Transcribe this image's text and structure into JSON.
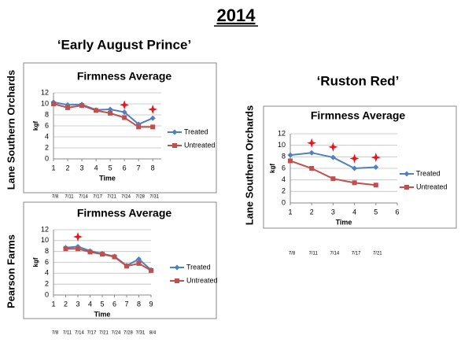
{
  "title": "2014",
  "varieties": [
    "‘Early August Prince’",
    "‘Ruston Red’"
  ],
  "chart_data": [
    {
      "type": "line",
      "title": "Firmness Average",
      "xlabel": "Time",
      "ylabel": "kgf",
      "site": "Lane Southern Orchards",
      "x": [
        1,
        2,
        3,
        4,
        5,
        6,
        7,
        8
      ],
      "series": [
        {
          "name": "Treated",
          "color": "#4f81bd",
          "marker": "diamond",
          "values": [
            10.3,
            9.8,
            9.9,
            8.9,
            9.0,
            8.5,
            6.3,
            7.4
          ]
        },
        {
          "name": "Untreated",
          "color": "#c0504d",
          "marker": "square",
          "values": [
            10.0,
            9.3,
            9.7,
            8.8,
            8.3,
            7.5,
            5.8,
            5.8
          ]
        }
      ],
      "xlim": [
        1,
        8.6
      ],
      "xticks": [
        1,
        2,
        3,
        4,
        5,
        6,
        7,
        8
      ],
      "ylim": [
        0,
        12
      ],
      "yticks": [
        0,
        2,
        4,
        6,
        8,
        10,
        12
      ],
      "grid": true,
      "legend": "right",
      "dates": [
        "7/8",
        "7/11",
        "7/14",
        "7/17",
        "7/21",
        "7/24",
        "7/28",
        "7/31"
      ],
      "stars": {
        "x": [
          6,
          8
        ],
        "y": [
          9.8,
          9.0
        ],
        "color": "#e8141c"
      }
    },
    {
      "type": "line",
      "title": "Firmness Average",
      "xlabel": "Time",
      "ylabel": "kgf",
      "site": "Pearson Farms",
      "x": [
        2,
        3,
        4,
        5,
        6,
        7,
        8,
        9
      ],
      "series": [
        {
          "name": "Treated",
          "color": "#4f81bd",
          "marker": "diamond",
          "values": [
            8.7,
            8.9,
            8.1,
            7.6,
            7.1,
            5.4,
            6.6,
            4.6
          ]
        },
        {
          "name": "Untreated",
          "color": "#c0504d",
          "marker": "square",
          "values": [
            8.5,
            8.5,
            7.9,
            7.5,
            7.0,
            5.3,
            5.8,
            4.5
          ]
        }
      ],
      "xlim": [
        1,
        9
      ],
      "xticks": [
        1,
        2,
        3,
        4,
        5,
        6,
        7,
        8,
        9
      ],
      "ylim": [
        0,
        12
      ],
      "yticks": [
        0,
        2,
        4,
        6,
        8,
        10,
        12
      ],
      "grid": true,
      "legend": "right",
      "dates": [
        "7/8",
        "7/11",
        "7/14",
        "7/17",
        "7/21",
        "7/24",
        "7/28",
        "7/31",
        "8/4"
      ],
      "stars": {
        "x": [
          3
        ],
        "y": [
          10.7
        ],
        "color": "#e8141c"
      }
    },
    {
      "type": "line",
      "title": "Firmness Average",
      "xlabel": "Time",
      "ylabel": "kgf",
      "site": "Lane Southern Orchards",
      "x": [
        1,
        2,
        3,
        4,
        5
      ],
      "series": [
        {
          "name": "Treated",
          "color": "#4f81bd",
          "marker": "diamond",
          "values": [
            8.3,
            8.7,
            7.9,
            6.0,
            6.2
          ]
        },
        {
          "name": "Untreated",
          "color": "#c0504d",
          "marker": "square",
          "values": [
            7.3,
            6.0,
            4.2,
            3.5,
            3.1
          ]
        }
      ],
      "xlim": [
        1,
        6
      ],
      "xticks": [
        1,
        2,
        3,
        4,
        5,
        6
      ],
      "ylim": [
        0,
        12
      ],
      "yticks": [
        0,
        2,
        4,
        6,
        8,
        10,
        12
      ],
      "grid": true,
      "legend": "right",
      "dates": [
        "7/8",
        "7/11",
        "7/14",
        "7/17",
        "7/21"
      ],
      "stars": {
        "x": [
          2,
          3,
          4,
          5
        ],
        "y": [
          10.4,
          9.7,
          7.7,
          7.9
        ],
        "color": "#e8141c"
      }
    }
  ]
}
